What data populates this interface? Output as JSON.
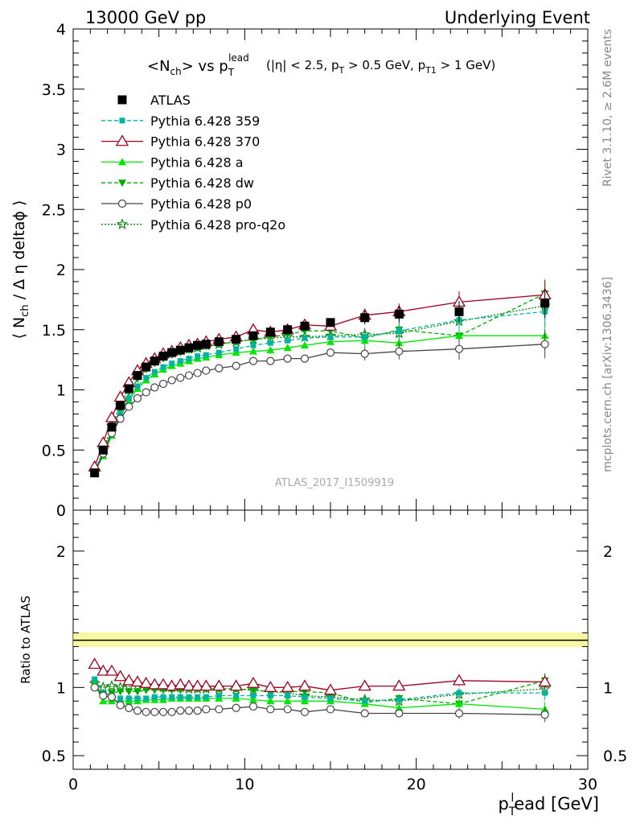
{
  "header": {
    "left": "13000 GeV pp",
    "right": "Underlying Event"
  },
  "side": {
    "rivet": "Rivet 3.1.10, ≥ 2.6M events",
    "mcplots": "mcplots.cern.ch [arXiv:1306.3436]"
  },
  "watermark": "ATLAS_2017_I1509919",
  "chart_data": [
    {
      "type": "line",
      "panel": "main",
      "title": "<Nch> vs pT lead (|η| < 2.5, pT > 0.5 GeV, pT1 > 1 GeV)",
      "ylabel": "⟨ Nch / Δη deltaφ ⟩",
      "xlim": [
        0,
        30
      ],
      "ylim": [
        0,
        4
      ],
      "yticks": [
        0.5,
        1,
        1.5,
        2,
        2.5,
        3,
        3.5,
        4
      ],
      "legend_position": "top-left",
      "x": [
        1.25,
        1.75,
        2.25,
        2.75,
        3.25,
        3.75,
        4.25,
        4.75,
        5.25,
        5.75,
        6.25,
        6.75,
        7.25,
        7.75,
        8.5,
        9.5,
        10.5,
        11.5,
        12.5,
        13.5,
        15,
        17,
        19,
        22.5,
        27.5
      ],
      "series": [
        {
          "name": "ATLAS",
          "color": "#000000",
          "marker": "square",
          "dash": "none",
          "values": [
            0.31,
            0.5,
            0.69,
            0.87,
            1.01,
            1.12,
            1.19,
            1.24,
            1.28,
            1.31,
            1.33,
            1.35,
            1.37,
            1.38,
            1.4,
            1.42,
            1.45,
            1.48,
            1.5,
            1.53,
            1.56,
            1.6,
            1.63,
            1.65,
            1.72
          ]
        },
        {
          "name": "Pythia 6.428 359",
          "color": "#00b4a0",
          "marker": "smallsquare",
          "dash": "dashed",
          "values": [
            0.33,
            0.48,
            0.65,
            0.8,
            0.93,
            1.03,
            1.1,
            1.15,
            1.19,
            1.22,
            1.24,
            1.26,
            1.28,
            1.29,
            1.31,
            1.34,
            1.37,
            1.39,
            1.41,
            1.43,
            1.44,
            1.44,
            1.49,
            1.58,
            1.65
          ]
        },
        {
          "name": "Pythia 6.428 370",
          "color": "#a0001e",
          "marker": "triangle-open",
          "dash": "none",
          "values": [
            0.36,
            0.56,
            0.77,
            0.94,
            1.06,
            1.16,
            1.22,
            1.26,
            1.3,
            1.32,
            1.35,
            1.37,
            1.38,
            1.4,
            1.42,
            1.44,
            1.5,
            1.48,
            1.5,
            1.54,
            1.53,
            1.62,
            1.65,
            1.73,
            1.79
          ]
        },
        {
          "name": "Pythia 6.428 a",
          "color": "#00e600",
          "marker": "triangle",
          "dash": "none",
          "values": [
            0.32,
            0.45,
            0.62,
            0.78,
            0.91,
            1.01,
            1.08,
            1.13,
            1.17,
            1.2,
            1.22,
            1.24,
            1.26,
            1.27,
            1.29,
            1.31,
            1.32,
            1.33,
            1.35,
            1.37,
            1.4,
            1.41,
            1.39,
            1.45,
            1.45
          ]
        },
        {
          "name": "Pythia 6.428 dw",
          "color": "#00aa00",
          "marker": "triangle-down",
          "dash": "dashed",
          "values": [
            0.32,
            0.47,
            0.66,
            0.84,
            0.98,
            1.09,
            1.17,
            1.22,
            1.26,
            1.29,
            1.31,
            1.33,
            1.35,
            1.36,
            1.38,
            1.4,
            1.42,
            1.44,
            1.46,
            1.49,
            1.49,
            1.43,
            1.5,
            1.45,
            1.8
          ]
        },
        {
          "name": "Pythia 6.428 p0",
          "color": "#444444",
          "marker": "circle-open",
          "dash": "none",
          "values": [
            0.31,
            0.47,
            0.64,
            0.76,
            0.86,
            0.93,
            0.98,
            1.02,
            1.05,
            1.08,
            1.1,
            1.12,
            1.14,
            1.16,
            1.18,
            1.2,
            1.24,
            1.24,
            1.26,
            1.26,
            1.31,
            1.3,
            1.32,
            1.34,
            1.38
          ]
        },
        {
          "name": "Pythia 6.428 pro-q2o",
          "color": "#008000",
          "marker": "star",
          "dash": "dotted",
          "values": [
            0.32,
            0.5,
            0.7,
            0.87,
            1.02,
            1.13,
            1.2,
            1.25,
            1.28,
            1.31,
            1.33,
            1.34,
            1.35,
            1.37,
            1.38,
            1.4,
            1.42,
            1.43,
            1.44,
            1.44,
            1.45,
            1.46,
            1.47,
            1.57,
            1.7
          ]
        }
      ]
    },
    {
      "type": "line",
      "panel": "ratio",
      "xlabel": "pTlead [GeV]",
      "ylabel": "Ratio to ATLAS",
      "xlim": [
        0,
        30
      ],
      "xticks": [
        0,
        10,
        20,
        30
      ],
      "ylim": [
        0.4,
        2.3
      ],
      "yticks": [
        0.5,
        1,
        2
      ],
      "series": [
        {
          "name": "Pythia 6.428 359",
          "values": [
            1.06,
            0.96,
            0.94,
            0.92,
            0.92,
            0.92,
            0.92,
            0.93,
            0.93,
            0.93,
            0.93,
            0.93,
            0.93,
            0.93,
            0.94,
            0.94,
            0.94,
            0.94,
            0.94,
            0.93,
            0.92,
            0.9,
            0.91,
            0.96,
            0.96
          ]
        },
        {
          "name": "Pythia 6.428 370",
          "values": [
            1.17,
            1.12,
            1.12,
            1.08,
            1.05,
            1.04,
            1.03,
            1.02,
            1.02,
            1.01,
            1.02,
            1.01,
            1.01,
            1.01,
            1.01,
            1.01,
            1.03,
            1.0,
            1.0,
            1.01,
            0.98,
            1.01,
            1.01,
            1.05,
            1.04
          ]
        },
        {
          "name": "Pythia 6.428 a",
          "values": [
            1.03,
            0.9,
            0.9,
            0.9,
            0.9,
            0.9,
            0.91,
            0.91,
            0.91,
            0.92,
            0.92,
            0.92,
            0.92,
            0.92,
            0.92,
            0.92,
            0.91,
            0.9,
            0.9,
            0.9,
            0.9,
            0.88,
            0.85,
            0.88,
            0.84
          ]
        },
        {
          "name": "Pythia 6.428 dw",
          "values": [
            1.03,
            0.94,
            0.96,
            0.97,
            0.97,
            0.97,
            0.98,
            0.98,
            0.98,
            0.98,
            0.98,
            0.99,
            0.99,
            0.99,
            0.99,
            0.99,
            0.98,
            0.97,
            0.97,
            0.97,
            0.96,
            0.89,
            0.92,
            0.88,
            1.05
          ]
        },
        {
          "name": "Pythia 6.428 p0",
          "values": [
            1.0,
            0.94,
            0.93,
            0.87,
            0.85,
            0.83,
            0.82,
            0.82,
            0.82,
            0.82,
            0.83,
            0.83,
            0.83,
            0.84,
            0.84,
            0.85,
            0.86,
            0.84,
            0.84,
            0.82,
            0.84,
            0.81,
            0.81,
            0.81,
            0.8
          ]
        },
        {
          "name": "Pythia 6.428 pro-q2o",
          "values": [
            1.03,
            1.0,
            1.01,
            1.0,
            1.01,
            1.01,
            1.01,
            1.01,
            1.0,
            1.0,
            1.0,
            0.99,
            0.99,
            0.99,
            0.99,
            0.99,
            0.98,
            0.97,
            0.96,
            0.94,
            0.93,
            0.91,
            0.9,
            0.95,
            0.99
          ]
        }
      ]
    }
  ]
}
